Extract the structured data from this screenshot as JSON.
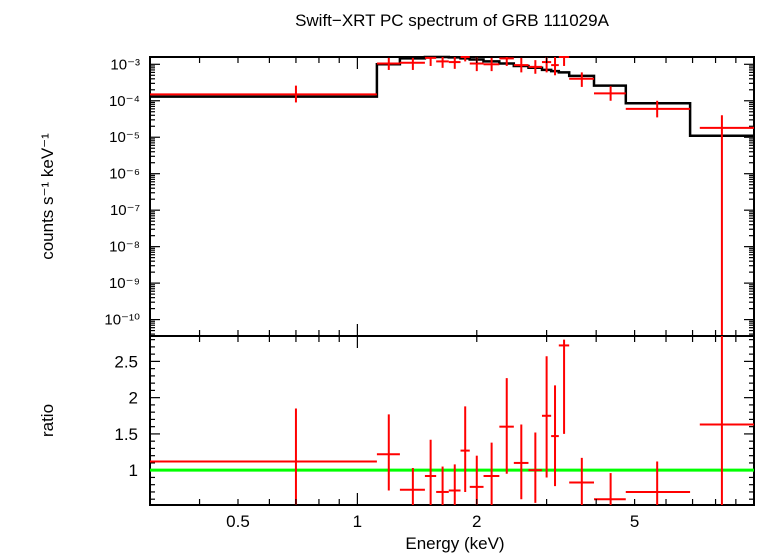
{
  "chart_data": {
    "type": "scatter",
    "title": "Swift−XRT PC spectrum of GRB 111029A",
    "xlabel": "Energy (keV)",
    "xscale": "log",
    "xlim": [
      0.3,
      10
    ],
    "x_ticks": [
      {
        "value": 0.5,
        "label": "0.5"
      },
      {
        "value": 1,
        "label": "1"
      },
      {
        "value": 2,
        "label": "2"
      },
      {
        "value": 5,
        "label": "5"
      }
    ],
    "top_panel": {
      "ylabel": "counts s⁻¹ keV⁻¹",
      "yscale": "log",
      "ylim_log10": [
        -10.45,
        -2.8
      ],
      "y_ticks": [
        {
          "exp": -3,
          "label": "10⁻³"
        },
        {
          "exp": -4,
          "label": "10⁻⁴"
        },
        {
          "exp": -5,
          "label": "10⁻⁵"
        },
        {
          "exp": -6,
          "label": "10⁻⁶"
        },
        {
          "exp": -7,
          "label": "10⁻⁷"
        },
        {
          "exp": -8,
          "label": "10⁻⁸"
        },
        {
          "exp": -9,
          "label": "10⁻⁹"
        },
        {
          "exp": -10,
          "label": "10⁻¹⁰"
        }
      ],
      "data_series": {
        "name": "data",
        "color": "#ff0000",
        "points": [
          {
            "xlo": 0.3,
            "xhi": 1.12,
            "x": 0.7,
            "y": 0.00015,
            "ylo": 9e-05,
            "yhi": 0.00026
          },
          {
            "xlo": 1.12,
            "xhi": 1.28,
            "x": 1.2,
            "y": 0.00105,
            "ylo": 0.0007,
            "yhi": 0.0015
          },
          {
            "xlo": 1.28,
            "xhi": 1.48,
            "x": 1.38,
            "y": 0.0011,
            "ylo": 0.0007,
            "yhi": 0.0015
          },
          {
            "xlo": 1.48,
            "xhi": 1.58,
            "x": 1.53,
            "y": 0.0015,
            "ylo": 0.0009,
            "yhi": 0.0022
          },
          {
            "xlo": 1.58,
            "xhi": 1.7,
            "x": 1.64,
            "y": 0.0012,
            "ylo": 0.0008,
            "yhi": 0.0018
          },
          {
            "xlo": 1.7,
            "xhi": 1.82,
            "x": 1.76,
            "y": 0.00115,
            "ylo": 0.00075,
            "yhi": 0.0017
          },
          {
            "xlo": 1.82,
            "xhi": 1.92,
            "x": 1.87,
            "y": 0.0018,
            "ylo": 0.0012,
            "yhi": 0.0026
          },
          {
            "xlo": 1.92,
            "xhi": 2.08,
            "x": 2.0,
            "y": 0.00105,
            "ylo": 0.00065,
            "yhi": 0.0016
          },
          {
            "xlo": 2.08,
            "xhi": 2.28,
            "x": 2.18,
            "y": 0.001,
            "ylo": 0.00065,
            "yhi": 0.0015
          },
          {
            "xlo": 2.28,
            "xhi": 2.48,
            "x": 2.38,
            "y": 0.00145,
            "ylo": 0.0009,
            "yhi": 0.0022
          },
          {
            "xlo": 2.48,
            "xhi": 2.7,
            "x": 2.59,
            "y": 0.00095,
            "ylo": 0.0006,
            "yhi": 0.0015
          },
          {
            "xlo": 2.7,
            "xhi": 2.92,
            "x": 2.81,
            "y": 0.00085,
            "ylo": 0.00055,
            "yhi": 0.0013
          },
          {
            "xlo": 2.92,
            "xhi": 3.08,
            "x": 3.0,
            "y": 0.00115,
            "ylo": 0.0006,
            "yhi": 0.0018
          },
          {
            "xlo": 3.08,
            "xhi": 3.22,
            "x": 3.15,
            "y": 0.00095,
            "ylo": 0.0005,
            "yhi": 0.0016
          },
          {
            "xlo": 3.22,
            "xhi": 3.42,
            "x": 3.32,
            "y": 0.0016,
            "ylo": 0.0009,
            "yhi": 0.0025
          },
          {
            "xlo": 3.42,
            "xhi": 3.95,
            "x": 3.68,
            "y": 0.0004,
            "ylo": 0.00024,
            "yhi": 0.0006
          },
          {
            "xlo": 3.95,
            "xhi": 4.75,
            "x": 4.35,
            "y": 0.00016,
            "ylo": 0.0001,
            "yhi": 0.00025
          },
          {
            "xlo": 4.75,
            "xhi": 6.9,
            "x": 5.7,
            "y": 6e-05,
            "ylo": 3.5e-05,
            "yhi": 0.0001
          },
          {
            "xlo": 7.3,
            "xhi": 10.0,
            "x": 8.3,
            "y": 1.8e-05,
            "ylo": 3e-11,
            "yhi": 4e-05
          }
        ]
      },
      "model_series": {
        "name": "model",
        "color": "#000000",
        "steps": [
          {
            "xlo": 0.3,
            "xhi": 1.12,
            "y": 0.00013
          },
          {
            "xlo": 1.12,
            "xhi": 1.28,
            "y": 0.001
          },
          {
            "xlo": 1.28,
            "xhi": 1.48,
            "y": 0.00145
          },
          {
            "xlo": 1.48,
            "xhi": 1.58,
            "y": 0.00165
          },
          {
            "xlo": 1.58,
            "xhi": 1.7,
            "y": 0.00165
          },
          {
            "xlo": 1.7,
            "xhi": 1.82,
            "y": 0.00155
          },
          {
            "xlo": 1.82,
            "xhi": 1.92,
            "y": 0.00145
          },
          {
            "xlo": 1.92,
            "xhi": 2.08,
            "y": 0.00135
          },
          {
            "xlo": 2.08,
            "xhi": 2.28,
            "y": 0.0012
          },
          {
            "xlo": 2.28,
            "xhi": 2.48,
            "y": 0.00105
          },
          {
            "xlo": 2.48,
            "xhi": 2.7,
            "y": 0.0009
          },
          {
            "xlo": 2.7,
            "xhi": 2.92,
            "y": 0.0008
          },
          {
            "xlo": 2.92,
            "xhi": 3.08,
            "y": 0.0007
          },
          {
            "xlo": 3.08,
            "xhi": 3.22,
            "y": 0.00065
          },
          {
            "xlo": 3.22,
            "xhi": 3.42,
            "y": 0.0006
          },
          {
            "xlo": 3.42,
            "xhi": 3.95,
            "y": 0.00048
          },
          {
            "xlo": 3.95,
            "xhi": 4.75,
            "y": 0.00026
          },
          {
            "xlo": 4.75,
            "xhi": 6.9,
            "y": 8.5e-05
          },
          {
            "xlo": 6.9,
            "xhi": 10.0,
            "y": 1.1e-05
          }
        ]
      }
    },
    "bottom_panel": {
      "ylabel": "ratio",
      "yscale": "linear",
      "ylim": [
        0.52,
        2.85
      ],
      "y_ticks": [
        {
          "value": 1,
          "label": "1"
        },
        {
          "value": 1.5,
          "label": "1.5"
        },
        {
          "value": 2,
          "label": "2"
        },
        {
          "value": 2.5,
          "label": "2.5"
        }
      ],
      "reference_line": {
        "y": 1,
        "color": "#00ff00"
      },
      "data_series": {
        "name": "ratio",
        "color": "#ff0000",
        "points": [
          {
            "xlo": 0.3,
            "xhi": 1.12,
            "x": 0.7,
            "y": 1.12,
            "ylo": 0.52,
            "yhi": 1.85
          },
          {
            "xlo": 1.12,
            "xhi": 1.28,
            "x": 1.2,
            "y": 1.22,
            "ylo": 0.72,
            "yhi": 1.77
          },
          {
            "xlo": 1.28,
            "xhi": 1.48,
            "x": 1.38,
            "y": 0.73,
            "ylo": 0.52,
            "yhi": 1.03
          },
          {
            "xlo": 1.48,
            "xhi": 1.58,
            "x": 1.53,
            "y": 0.92,
            "ylo": 0.52,
            "yhi": 1.42
          },
          {
            "xlo": 1.58,
            "xhi": 1.7,
            "x": 1.64,
            "y": 0.7,
            "ylo": 0.52,
            "yhi": 1.05
          },
          {
            "xlo": 1.7,
            "xhi": 1.82,
            "x": 1.76,
            "y": 0.72,
            "ylo": 0.52,
            "yhi": 1.08
          },
          {
            "xlo": 1.82,
            "xhi": 1.92,
            "x": 1.87,
            "y": 1.27,
            "ylo": 0.7,
            "yhi": 1.88
          },
          {
            "xlo": 1.92,
            "xhi": 2.08,
            "x": 2.0,
            "y": 0.77,
            "ylo": 0.52,
            "yhi": 1.2
          },
          {
            "xlo": 2.08,
            "xhi": 2.28,
            "x": 2.18,
            "y": 0.92,
            "ylo": 0.52,
            "yhi": 1.38
          },
          {
            "xlo": 2.28,
            "xhi": 2.48,
            "x": 2.38,
            "y": 1.6,
            "ylo": 0.95,
            "yhi": 2.27
          },
          {
            "xlo": 2.48,
            "xhi": 2.7,
            "x": 2.59,
            "y": 1.1,
            "ylo": 0.6,
            "yhi": 1.63
          },
          {
            "xlo": 2.7,
            "xhi": 2.92,
            "x": 2.81,
            "y": 1.0,
            "ylo": 0.55,
            "yhi": 1.52
          },
          {
            "xlo": 2.92,
            "xhi": 3.08,
            "x": 3.0,
            "y": 1.75,
            "ylo": 0.9,
            "yhi": 2.57
          },
          {
            "xlo": 3.08,
            "xhi": 3.22,
            "x": 3.15,
            "y": 1.47,
            "ylo": 0.78,
            "yhi": 2.17
          },
          {
            "xlo": 3.22,
            "xhi": 3.42,
            "x": 3.32,
            "y": 2.72,
            "ylo": 1.5,
            "yhi": 2.8
          },
          {
            "xlo": 3.42,
            "xhi": 3.95,
            "x": 3.68,
            "y": 0.83,
            "ylo": 0.52,
            "yhi": 1.17
          },
          {
            "xlo": 3.95,
            "xhi": 4.75,
            "x": 4.35,
            "y": 0.6,
            "ylo": 0.52,
            "yhi": 0.96
          },
          {
            "xlo": 4.75,
            "xhi": 6.9,
            "x": 5.7,
            "y": 0.7,
            "ylo": 0.52,
            "yhi": 1.12
          },
          {
            "xlo": 7.3,
            "xhi": 10.0,
            "x": 8.3,
            "y": 1.63,
            "ylo": 0.52,
            "yhi": 2.85
          }
        ]
      }
    }
  }
}
